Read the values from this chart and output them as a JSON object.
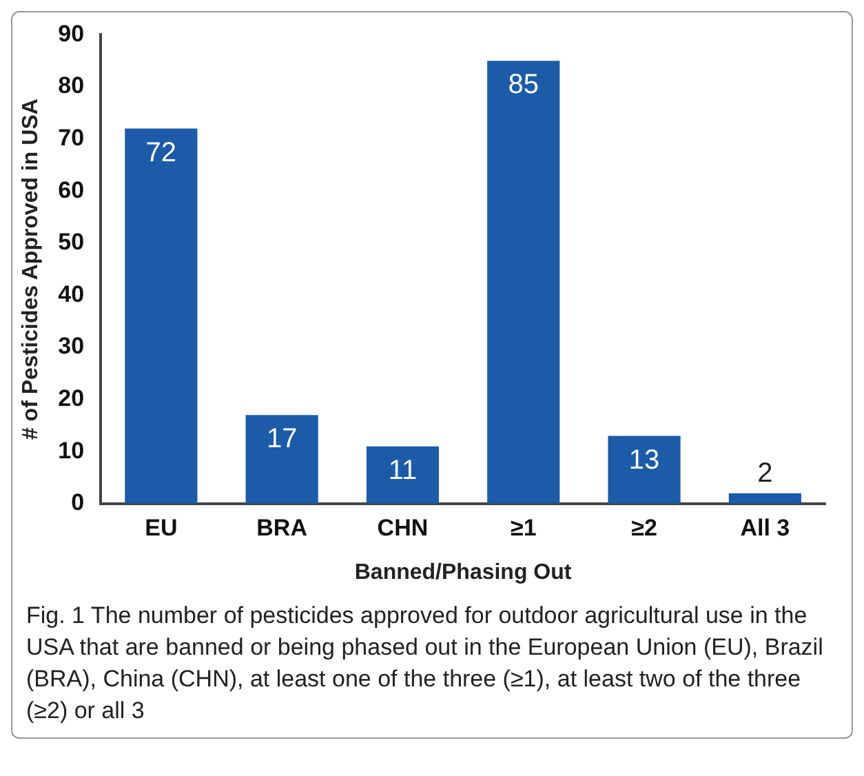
{
  "chart_data": {
    "type": "bar",
    "xlabel": "Banned/Phasing Out",
    "ylabel": "# of Pesticides Approved in USA",
    "categories": [
      "EU",
      "BRA",
      "CHN",
      "≥1",
      "≥2",
      "All 3"
    ],
    "values": [
      72,
      17,
      11,
      85,
      13,
      2
    ],
    "color": "#1b5ba8",
    "ylim": [
      0,
      90
    ],
    "yticks": [
      0,
      10,
      20,
      30,
      40,
      50,
      60,
      70,
      80,
      90
    ],
    "grid": false,
    "legend": false,
    "data_labels": true,
    "annotations": [
      "Fig. 1 The number of pesticides approved for outdoor agricultural use in the USA that are banned or being phased out in the European Union (EU), Brazil (BRA), China (CHN), at least one of the three (≥1), at least two of the three (≥2) or all 3"
    ]
  }
}
